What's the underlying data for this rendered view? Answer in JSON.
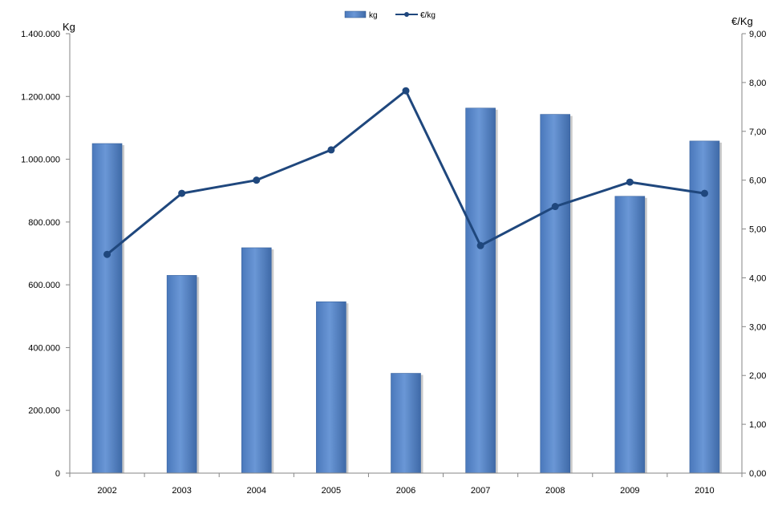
{
  "chart_data": {
    "type": "bar",
    "categories": [
      "2002",
      "2003",
      "2004",
      "2005",
      "2006",
      "2007",
      "2008",
      "2009",
      "2010"
    ],
    "series": [
      {
        "name": "kg",
        "type": "bar",
        "axis": "left",
        "color": "#5b8acc",
        "values": [
          1050000,
          630000,
          718000,
          546000,
          318000,
          1163000,
          1143000,
          882000,
          1058000
        ]
      },
      {
        "name": "€/kg",
        "type": "line",
        "axis": "right",
        "color": "#1f477d",
        "values": [
          4.48,
          5.73,
          6.0,
          6.62,
          7.83,
          4.66,
          5.46,
          5.96,
          5.73
        ]
      }
    ],
    "left_axis": {
      "title": "Kg",
      "ylim": [
        0,
        1400000
      ],
      "ticks": [
        "0",
        "200.000",
        "400.000",
        "600.000",
        "800.000",
        "1.000.000",
        "1.200.000",
        "1.400.000"
      ]
    },
    "right_axis": {
      "title": "€/Kg",
      "ylim": [
        0,
        9
      ],
      "ticks": [
        "0,00",
        "1,00",
        "2,00",
        "3,00",
        "4,00",
        "5,00",
        "6,00",
        "7,00",
        "8,00",
        "9,00"
      ]
    },
    "legend": {
      "position": "top-center"
    },
    "grid": false
  }
}
